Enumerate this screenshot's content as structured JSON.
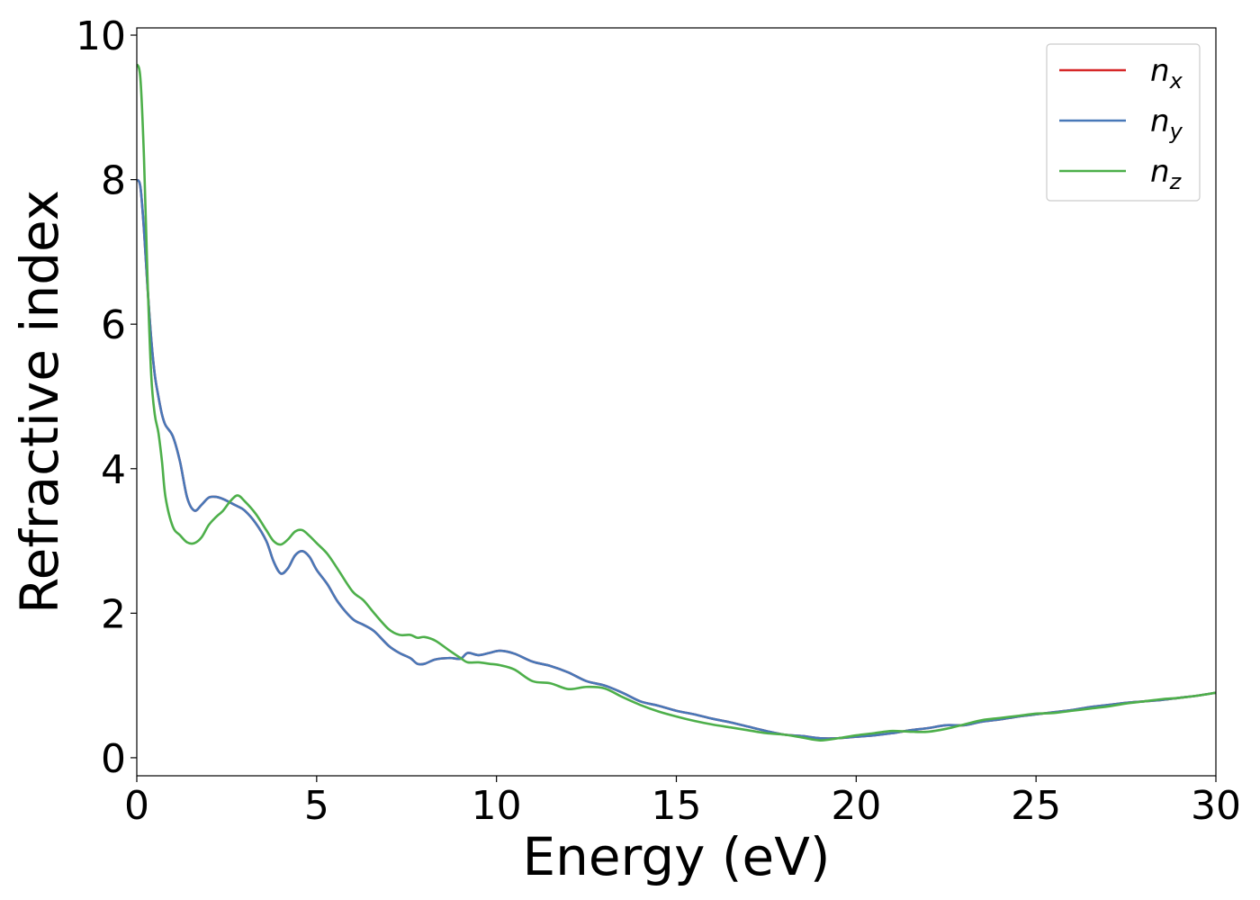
{
  "chart_data": {
    "type": "line",
    "xlabel": "Energy (eV)",
    "ylabel": "Refractive index",
    "xlim": [
      0,
      30
    ],
    "ylim": [
      -0.25,
      10.1
    ],
    "xticks": [
      0,
      5,
      10,
      15,
      20,
      25,
      30
    ],
    "yticks": [
      0,
      2,
      4,
      6,
      8,
      10
    ],
    "grid": false,
    "legend_position": "top-right",
    "legend_entries": [
      {
        "base": "n",
        "sub": "x"
      },
      {
        "base": "n",
        "sub": "y"
      },
      {
        "base": "n",
        "sub": "z"
      }
    ],
    "series": [
      {
        "name": "n_x",
        "color": "#d62728",
        "points": [
          [
            0.0,
            8.0
          ],
          [
            0.1,
            7.9
          ],
          [
            0.2,
            7.3
          ],
          [
            0.3,
            6.5
          ],
          [
            0.4,
            5.8
          ],
          [
            0.5,
            5.3
          ],
          [
            0.6,
            5.0
          ],
          [
            0.7,
            4.75
          ],
          [
            0.8,
            4.6
          ],
          [
            1.0,
            4.45
          ],
          [
            1.2,
            4.1
          ],
          [
            1.4,
            3.6
          ],
          [
            1.6,
            3.42
          ],
          [
            1.8,
            3.5
          ],
          [
            2.0,
            3.6
          ],
          [
            2.2,
            3.61
          ],
          [
            2.4,
            3.58
          ],
          [
            2.6,
            3.53
          ],
          [
            2.8,
            3.48
          ],
          [
            3.0,
            3.42
          ],
          [
            3.3,
            3.25
          ],
          [
            3.6,
            3.0
          ],
          [
            3.8,
            2.72
          ],
          [
            4.0,
            2.55
          ],
          [
            4.2,
            2.62
          ],
          [
            4.4,
            2.8
          ],
          [
            4.6,
            2.86
          ],
          [
            4.8,
            2.78
          ],
          [
            5.0,
            2.6
          ],
          [
            5.3,
            2.4
          ],
          [
            5.6,
            2.15
          ],
          [
            6.0,
            1.92
          ],
          [
            6.3,
            1.84
          ],
          [
            6.6,
            1.75
          ],
          [
            7.0,
            1.55
          ],
          [
            7.3,
            1.45
          ],
          [
            7.6,
            1.38
          ],
          [
            7.8,
            1.3
          ],
          [
            8.0,
            1.3
          ],
          [
            8.3,
            1.36
          ],
          [
            8.7,
            1.38
          ],
          [
            9.0,
            1.37
          ],
          [
            9.2,
            1.45
          ],
          [
            9.5,
            1.42
          ],
          [
            9.8,
            1.45
          ],
          [
            10.1,
            1.48
          ],
          [
            10.5,
            1.44
          ],
          [
            11.0,
            1.33
          ],
          [
            11.5,
            1.27
          ],
          [
            12.0,
            1.18
          ],
          [
            12.5,
            1.06
          ],
          [
            13.0,
            1.0
          ],
          [
            13.5,
            0.9
          ],
          [
            14.0,
            0.78
          ],
          [
            14.5,
            0.72
          ],
          [
            15.0,
            0.65
          ],
          [
            15.5,
            0.6
          ],
          [
            16.0,
            0.54
          ],
          [
            16.5,
            0.49
          ],
          [
            17.0,
            0.43
          ],
          [
            17.5,
            0.37
          ],
          [
            18.0,
            0.32
          ],
          [
            18.5,
            0.3
          ],
          [
            19.0,
            0.27
          ],
          [
            19.5,
            0.27
          ],
          [
            20.0,
            0.29
          ],
          [
            20.5,
            0.31
          ],
          [
            21.0,
            0.34
          ],
          [
            21.5,
            0.38
          ],
          [
            22.0,
            0.41
          ],
          [
            22.5,
            0.45
          ],
          [
            23.0,
            0.45
          ],
          [
            23.5,
            0.5
          ],
          [
            24.0,
            0.53
          ],
          [
            24.5,
            0.57
          ],
          [
            25.0,
            0.6
          ],
          [
            25.5,
            0.63
          ],
          [
            26.0,
            0.66
          ],
          [
            26.5,
            0.7
          ],
          [
            27.0,
            0.73
          ],
          [
            27.5,
            0.76
          ],
          [
            28.0,
            0.78
          ],
          [
            28.5,
            0.8
          ],
          [
            29.0,
            0.83
          ],
          [
            29.5,
            0.86
          ],
          [
            30.0,
            0.9
          ]
        ]
      },
      {
        "name": "n_y",
        "color": "#4878b8",
        "points": [
          [
            0.0,
            8.0
          ],
          [
            0.1,
            7.9
          ],
          [
            0.2,
            7.3
          ],
          [
            0.3,
            6.5
          ],
          [
            0.4,
            5.8
          ],
          [
            0.5,
            5.3
          ],
          [
            0.6,
            5.0
          ],
          [
            0.7,
            4.75
          ],
          [
            0.8,
            4.6
          ],
          [
            1.0,
            4.45
          ],
          [
            1.2,
            4.1
          ],
          [
            1.4,
            3.6
          ],
          [
            1.6,
            3.42
          ],
          [
            1.8,
            3.5
          ],
          [
            2.0,
            3.6
          ],
          [
            2.2,
            3.61
          ],
          [
            2.4,
            3.58
          ],
          [
            2.6,
            3.53
          ],
          [
            2.8,
            3.48
          ],
          [
            3.0,
            3.42
          ],
          [
            3.3,
            3.25
          ],
          [
            3.6,
            3.0
          ],
          [
            3.8,
            2.72
          ],
          [
            4.0,
            2.55
          ],
          [
            4.2,
            2.62
          ],
          [
            4.4,
            2.8
          ],
          [
            4.6,
            2.86
          ],
          [
            4.8,
            2.78
          ],
          [
            5.0,
            2.6
          ],
          [
            5.3,
            2.4
          ],
          [
            5.6,
            2.15
          ],
          [
            6.0,
            1.92
          ],
          [
            6.3,
            1.84
          ],
          [
            6.6,
            1.75
          ],
          [
            7.0,
            1.55
          ],
          [
            7.3,
            1.45
          ],
          [
            7.6,
            1.38
          ],
          [
            7.8,
            1.3
          ],
          [
            8.0,
            1.3
          ],
          [
            8.3,
            1.36
          ],
          [
            8.7,
            1.38
          ],
          [
            9.0,
            1.37
          ],
          [
            9.2,
            1.45
          ],
          [
            9.5,
            1.42
          ],
          [
            9.8,
            1.45
          ],
          [
            10.1,
            1.48
          ],
          [
            10.5,
            1.44
          ],
          [
            11.0,
            1.33
          ],
          [
            11.5,
            1.27
          ],
          [
            12.0,
            1.18
          ],
          [
            12.5,
            1.06
          ],
          [
            13.0,
            1.0
          ],
          [
            13.5,
            0.9
          ],
          [
            14.0,
            0.78
          ],
          [
            14.5,
            0.72
          ],
          [
            15.0,
            0.65
          ],
          [
            15.5,
            0.6
          ],
          [
            16.0,
            0.54
          ],
          [
            16.5,
            0.49
          ],
          [
            17.0,
            0.43
          ],
          [
            17.5,
            0.37
          ],
          [
            18.0,
            0.32
          ],
          [
            18.5,
            0.3
          ],
          [
            19.0,
            0.27
          ],
          [
            19.5,
            0.27
          ],
          [
            20.0,
            0.29
          ],
          [
            20.5,
            0.31
          ],
          [
            21.0,
            0.34
          ],
          [
            21.5,
            0.38
          ],
          [
            22.0,
            0.41
          ],
          [
            22.5,
            0.45
          ],
          [
            23.0,
            0.45
          ],
          [
            23.5,
            0.5
          ],
          [
            24.0,
            0.53
          ],
          [
            24.5,
            0.57
          ],
          [
            25.0,
            0.6
          ],
          [
            25.5,
            0.63
          ],
          [
            26.0,
            0.66
          ],
          [
            26.5,
            0.7
          ],
          [
            27.0,
            0.73
          ],
          [
            27.5,
            0.76
          ],
          [
            28.0,
            0.78
          ],
          [
            28.5,
            0.8
          ],
          [
            29.0,
            0.83
          ],
          [
            29.5,
            0.86
          ],
          [
            30.0,
            0.9
          ]
        ]
      },
      {
        "name": "n_z",
        "color": "#4daf4a",
        "points": [
          [
            0.0,
            9.6
          ],
          [
            0.1,
            9.4
          ],
          [
            0.2,
            8.3
          ],
          [
            0.3,
            6.6
          ],
          [
            0.4,
            5.3
          ],
          [
            0.5,
            4.75
          ],
          [
            0.6,
            4.5
          ],
          [
            0.7,
            4.1
          ],
          [
            0.8,
            3.6
          ],
          [
            1.0,
            3.2
          ],
          [
            1.2,
            3.08
          ],
          [
            1.4,
            2.98
          ],
          [
            1.6,
            2.97
          ],
          [
            1.8,
            3.05
          ],
          [
            2.0,
            3.22
          ],
          [
            2.2,
            3.33
          ],
          [
            2.4,
            3.42
          ],
          [
            2.6,
            3.55
          ],
          [
            2.8,
            3.63
          ],
          [
            3.0,
            3.55
          ],
          [
            3.3,
            3.38
          ],
          [
            3.6,
            3.15
          ],
          [
            3.8,
            3.0
          ],
          [
            4.0,
            2.95
          ],
          [
            4.2,
            3.02
          ],
          [
            4.4,
            3.13
          ],
          [
            4.6,
            3.15
          ],
          [
            4.8,
            3.07
          ],
          [
            5.0,
            2.97
          ],
          [
            5.3,
            2.82
          ],
          [
            5.6,
            2.6
          ],
          [
            6.0,
            2.3
          ],
          [
            6.3,
            2.18
          ],
          [
            6.6,
            2.0
          ],
          [
            7.0,
            1.78
          ],
          [
            7.3,
            1.7
          ],
          [
            7.6,
            1.7
          ],
          [
            7.8,
            1.66
          ],
          [
            8.0,
            1.67
          ],
          [
            8.3,
            1.62
          ],
          [
            8.7,
            1.48
          ],
          [
            9.0,
            1.38
          ],
          [
            9.2,
            1.32
          ],
          [
            9.5,
            1.32
          ],
          [
            9.8,
            1.3
          ],
          [
            10.1,
            1.28
          ],
          [
            10.5,
            1.22
          ],
          [
            11.0,
            1.06
          ],
          [
            11.5,
            1.03
          ],
          [
            12.0,
            0.95
          ],
          [
            12.5,
            0.98
          ],
          [
            13.0,
            0.96
          ],
          [
            13.5,
            0.84
          ],
          [
            14.0,
            0.73
          ],
          [
            14.5,
            0.64
          ],
          [
            15.0,
            0.57
          ],
          [
            15.5,
            0.51
          ],
          [
            16.0,
            0.46
          ],
          [
            16.5,
            0.42
          ],
          [
            17.0,
            0.38
          ],
          [
            17.5,
            0.34
          ],
          [
            18.0,
            0.32
          ],
          [
            18.5,
            0.28
          ],
          [
            19.0,
            0.24
          ],
          [
            19.5,
            0.27
          ],
          [
            20.0,
            0.31
          ],
          [
            20.5,
            0.34
          ],
          [
            21.0,
            0.37
          ],
          [
            21.5,
            0.36
          ],
          [
            22.0,
            0.36
          ],
          [
            22.5,
            0.4
          ],
          [
            23.0,
            0.46
          ],
          [
            23.5,
            0.52
          ],
          [
            24.0,
            0.55
          ],
          [
            24.5,
            0.58
          ],
          [
            25.0,
            0.61
          ],
          [
            25.5,
            0.62
          ],
          [
            26.0,
            0.65
          ],
          [
            26.5,
            0.68
          ],
          [
            27.0,
            0.71
          ],
          [
            27.5,
            0.75
          ],
          [
            28.0,
            0.78
          ],
          [
            28.5,
            0.81
          ],
          [
            29.0,
            0.83
          ],
          [
            29.5,
            0.86
          ],
          [
            30.0,
            0.9
          ]
        ]
      }
    ]
  }
}
